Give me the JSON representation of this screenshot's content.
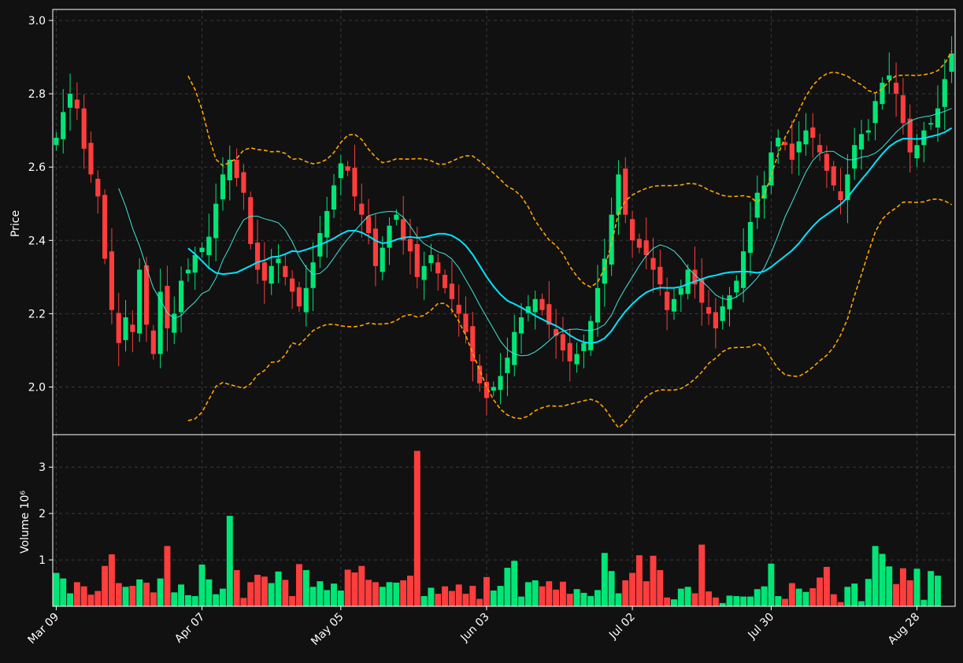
{
  "chart_data": {
    "type": "candlestick",
    "price_panel": {
      "ylabel": "Price",
      "ylim": [
        1.87,
        3.03
      ],
      "yticks": [
        2.0,
        2.2,
        2.4,
        2.6,
        2.8,
        3.0
      ],
      "ytick_labels": [
        "2.0",
        "2.2",
        "2.4",
        "2.6",
        "2.8",
        "3.0"
      ],
      "grid": true,
      "series": [
        {
          "name": "close",
          "values": [
            2.68,
            2.75,
            2.8,
            2.76,
            2.65,
            2.58,
            2.52,
            2.35,
            2.21,
            2.12,
            2.19,
            2.15,
            2.32,
            2.17,
            2.09,
            2.26,
            2.16,
            2.2,
            2.29,
            2.32,
            2.36,
            2.38,
            2.41,
            2.5,
            2.58,
            2.62,
            2.57,
            2.53,
            2.39,
            2.32,
            2.29,
            2.33,
            2.35,
            2.3,
            2.26,
            2.22,
            2.27,
            2.34,
            2.42,
            2.48,
            2.55,
            2.61,
            2.59,
            2.52,
            2.47,
            2.42,
            2.33,
            2.38,
            2.44,
            2.47,
            2.4,
            2.37,
            2.3,
            2.33,
            2.36,
            2.31,
            2.27,
            2.24,
            2.2,
            2.15,
            2.07,
            2.01,
            1.97,
            2.0,
            2.03,
            2.08,
            2.15,
            2.19,
            2.22,
            2.24,
            2.21,
            2.17,
            2.14,
            2.1,
            2.07,
            2.09,
            2.12,
            2.18,
            2.27,
            2.35,
            2.47,
            2.58,
            2.47,
            2.4,
            2.38,
            2.36,
            2.32,
            2.28,
            2.21,
            2.24,
            2.27,
            2.32,
            2.28,
            2.23,
            2.2,
            2.16,
            2.22,
            2.25,
            2.29,
            2.37,
            2.45,
            2.53,
            2.55,
            2.64,
            2.68,
            2.66,
            2.62,
            2.67,
            2.7,
            2.68,
            2.64,
            2.59,
            2.55,
            2.51,
            2.58,
            2.66,
            2.69,
            2.7,
            2.78,
            2.83,
            2.85,
            2.8,
            2.72,
            2.64,
            2.66,
            2.7,
            2.72,
            2.76,
            2.84,
            2.91
          ],
          "ylim": [
            1.87,
            3.03
          ]
        },
        {
          "name": "ma_short",
          "values": []
        },
        {
          "name": "ma_long",
          "values": []
        },
        {
          "name": "bollinger_upper",
          "values": []
        },
        {
          "name": "bollinger_lower",
          "values": []
        }
      ]
    },
    "volume_panel": {
      "ylabel": "Volume  10⁶",
      "ylim": [
        0,
        3.7
      ],
      "yticks": [
        1,
        2,
        3
      ],
      "ytick_labels": [
        "1",
        "2",
        "3"
      ],
      "values": [
        0.72,
        0.6,
        0.28,
        0.52,
        0.43,
        0.25,
        0.33,
        0.87,
        1.12,
        0.5,
        0.42,
        0.44,
        0.58,
        0.51,
        0.3,
        0.6,
        1.3,
        0.3,
        0.47,
        0.24,
        0.22,
        0.9,
        0.58,
        0.26,
        0.38,
        1.95,
        0.78,
        0.18,
        0.52,
        0.68,
        0.64,
        0.5,
        0.75,
        0.57,
        0.22,
        0.91,
        0.78,
        0.42,
        0.54,
        0.35,
        0.49,
        0.34,
        0.79,
        0.73,
        0.87,
        0.57,
        0.52,
        0.42,
        0.52,
        0.51,
        0.56,
        0.66,
        3.35,
        0.22,
        0.4,
        0.27,
        0.43,
        0.33,
        0.47,
        0.27,
        0.44,
        0.16,
        0.63,
        0.34,
        0.44,
        0.83,
        0.98,
        0.21,
        0.52,
        0.56,
        0.43,
        0.54,
        0.36,
        0.53,
        0.27,
        0.37,
        0.29,
        0.22,
        0.35,
        1.15,
        0.76,
        0.28,
        0.56,
        0.72,
        1.1,
        0.54,
        1.09,
        0.78,
        0.19,
        0.15,
        0.38,
        0.42,
        0.28,
        1.33,
        0.32,
        0.19,
        0.07,
        0.23,
        0.22,
        0.21,
        0.21,
        0.37,
        0.43,
        0.92,
        0.22,
        0.16,
        0.5,
        0.38,
        0.31,
        0.39,
        0.62,
        0.85,
        0.26,
        0.09,
        0.42,
        0.49,
        0.11,
        0.59,
        1.3,
        1.13,
        0.86,
        0.48,
        0.82,
        0.56,
        0.81,
        0.14,
        0.76,
        0.66
      ]
    },
    "x": {
      "tick_labels": [
        "Mar 09",
        "Apr 07",
        "May 05",
        "Jun 03",
        "Jul 02",
        "Jul 30",
        "Aug 28"
      ],
      "tick_index": [
        0,
        21,
        41,
        62,
        83,
        103,
        124
      ],
      "count": 130
    },
    "colors": {
      "background": "#111111",
      "up": "#00e676",
      "down": "#ff3d3d",
      "ma_short": "#3ee6d8",
      "ma_long": "#00e5ff",
      "bollinger": "#ffa500",
      "grid": "#3a3a3a",
      "axes": "#ffffff"
    }
  }
}
